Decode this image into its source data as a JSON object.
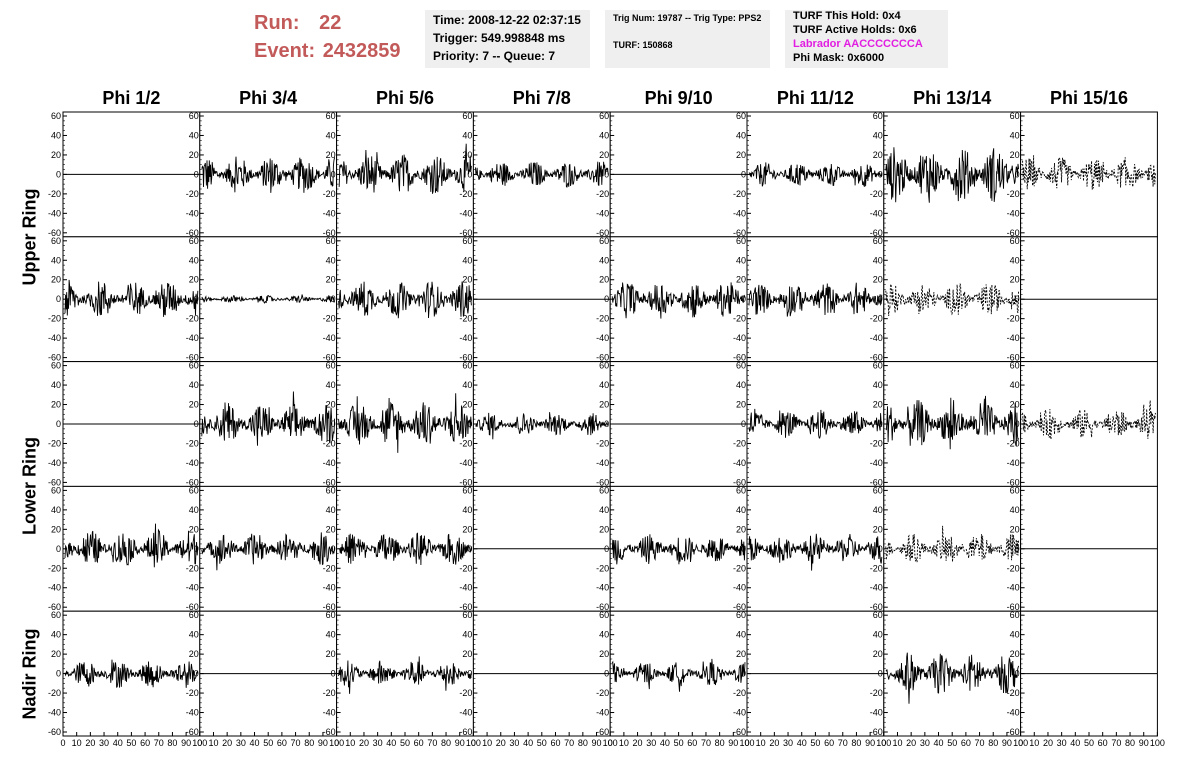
{
  "header": {
    "run_label": "Run:",
    "run_value": "22",
    "event_label": "Event:",
    "event_value": "2432859",
    "time": "Time: 2008-12-22 02:37:15",
    "trigger": "Trigger: 549.998848 ms",
    "priority": "Priority: 7 -- Queue: 7",
    "trig_num": "Trig Num: 19787 -- Trig Type: PPS2",
    "turf": "TURF: 150868",
    "turf_hold": "TURF This Hold: 0x4",
    "turf_active": "TURF Active Holds: 0x6",
    "labrador": "Labrador AACCCCCCCA",
    "phi_mask": "Phi Mask: 0x6000"
  },
  "colors": {
    "run_text": "#c35a5a",
    "labrador_text": "#e11ee1",
    "panel_bg": "#efefef"
  },
  "chart_data": {
    "type": "line",
    "columns": [
      "Phi 1/2",
      "Phi 3/4",
      "Phi 5/6",
      "Phi 7/8",
      "Phi 9/10",
      "Phi 11/12",
      "Phi 13/14",
      "Phi 15/16"
    ],
    "row_groups": [
      {
        "label": "Upper Ring",
        "rows": [
          0,
          1
        ]
      },
      {
        "label": "Lower Ring",
        "rows": [
          2,
          3
        ]
      },
      {
        "label": "Nadir Ring",
        "rows": [
          4
        ]
      }
    ],
    "ylim": [
      -60,
      60
    ],
    "yticks": [
      "-60",
      "-40",
      "-20",
      "0",
      "20",
      "40",
      "60"
    ],
    "xlim": [
      0,
      100
    ],
    "xticks": [
      "0",
      "10",
      "20",
      "30",
      "40",
      "50",
      "60",
      "70",
      "80",
      "90",
      "100"
    ],
    "panels": [
      [
        {
          "state": "flat"
        },
        {
          "state": "wave",
          "amp": 20
        },
        {
          "state": "wave",
          "amp": 22
        },
        {
          "state": "wave",
          "amp": 14
        },
        {
          "state": "flat"
        },
        {
          "state": "wave",
          "amp": 13
        },
        {
          "state": "wave",
          "amp": 30
        },
        {
          "state": "dashed",
          "amp": 18
        }
      ],
      [
        {
          "state": "wave",
          "amp": 20
        },
        {
          "state": "wave",
          "amp": 4
        },
        {
          "state": "wave",
          "amp": 20
        },
        {
          "state": "flat"
        },
        {
          "state": "wave",
          "amp": 20
        },
        {
          "state": "wave",
          "amp": 18
        },
        {
          "state": "dashed",
          "amp": 18
        },
        {
          "state": "flat"
        }
      ],
      [
        {
          "state": "flat"
        },
        {
          "state": "wave",
          "amp": 22
        },
        {
          "state": "wave",
          "amp": 25
        },
        {
          "state": "wave",
          "amp": 12
        },
        {
          "state": "flat"
        },
        {
          "state": "wave",
          "amp": 15
        },
        {
          "state": "wave",
          "amp": 25
        },
        {
          "state": "dashed",
          "amp": 16
        }
      ],
      [
        {
          "state": "wave",
          "amp": 20
        },
        {
          "state": "wave",
          "amp": 17
        },
        {
          "state": "wave",
          "amp": 18
        },
        {
          "state": "flat"
        },
        {
          "state": "wave",
          "amp": 16
        },
        {
          "state": "wave",
          "amp": 16
        },
        {
          "state": "dashed",
          "amp": 16
        },
        {
          "state": "flat"
        }
      ],
      [
        {
          "state": "wave",
          "amp": 15
        },
        {
          "state": "flat"
        },
        {
          "state": "wave",
          "amp": 14
        },
        {
          "state": "flat"
        },
        {
          "state": "wave",
          "amp": 12
        },
        {
          "state": "flat"
        },
        {
          "state": "wave",
          "amp": 22
        },
        {
          "state": "flat"
        }
      ]
    ]
  }
}
